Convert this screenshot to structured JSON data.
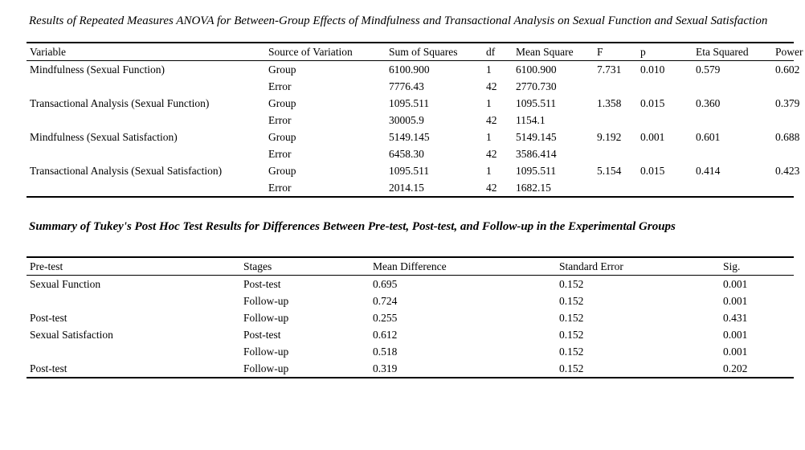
{
  "page": {
    "background_color": "#ffffff",
    "text_color": "#000000",
    "rule_color": "#000000"
  },
  "anova_section": {
    "title": "Results of Repeated Measures ANOVA for Between-Group Effects of Mindfulness and Transactional Analysis on Sexual Function and Sexual Satisfaction",
    "table": {
      "columns": [
        "Variable",
        "Source of Variation",
        "Sum of Squares",
        "df",
        "Mean Square",
        "F",
        "p",
        "Eta Squared",
        "Power"
      ],
      "rows": [
        [
          "Mindfulness (Sexual Function)",
          "Group",
          "6100.900",
          "1",
          "6100.900",
          "7.731",
          "0.010",
          "0.579",
          "0.602"
        ],
        [
          "",
          "Error",
          "7776.43",
          "42",
          "2770.730",
          "",
          "",
          "",
          ""
        ],
        [
          "Transactional Analysis (Sexual Function)",
          "Group",
          "1095.511",
          "1",
          "1095.511",
          "1.358",
          "0.015",
          "0.360",
          "0.379"
        ],
        [
          "",
          "Error",
          "30005.9",
          "42",
          "1154.1",
          "",
          "",
          "",
          ""
        ],
        [
          "Mindfulness (Sexual Satisfaction)",
          "Group",
          "5149.145",
          "1",
          "5149.145",
          "9.192",
          "0.001",
          "0.601",
          "0.688"
        ],
        [
          "",
          "Error",
          "6458.30",
          "42",
          "3586.414",
          "",
          "",
          "",
          ""
        ],
        [
          "Transactional Analysis (Sexual Satisfaction)",
          "Group",
          "1095.511",
          "1",
          "1095.511",
          "5.154",
          "0.015",
          "0.414",
          "0.423"
        ],
        [
          "",
          "Error",
          "2014.15",
          "42",
          "1682.15",
          "",
          "",
          "",
          ""
        ]
      ]
    }
  },
  "tukey_section": {
    "title": "Summary of Tukey's Post Hoc Test Results for Differences Between Pre-test, Post-test, and Follow-up in the Experimental Groups",
    "table": {
      "columns": [
        "Pre-test",
        "Stages",
        "Mean Difference",
        "Standard Error",
        "Sig."
      ],
      "rows": [
        [
          "Sexual Function",
          "Post-test",
          "0.695",
          "0.152",
          "0.001"
        ],
        [
          "",
          "Follow-up",
          "0.724",
          "0.152",
          "0.001"
        ],
        [
          "Post-test",
          "Follow-up",
          "0.255",
          "0.152",
          "0.431"
        ],
        [
          "Sexual Satisfaction",
          "Post-test",
          "0.612",
          "0.152",
          "0.001"
        ],
        [
          "",
          "Follow-up",
          "0.518",
          "0.152",
          "0.001"
        ],
        [
          "Post-test",
          "Follow-up",
          "0.319",
          "0.152",
          "0.202"
        ]
      ]
    }
  }
}
